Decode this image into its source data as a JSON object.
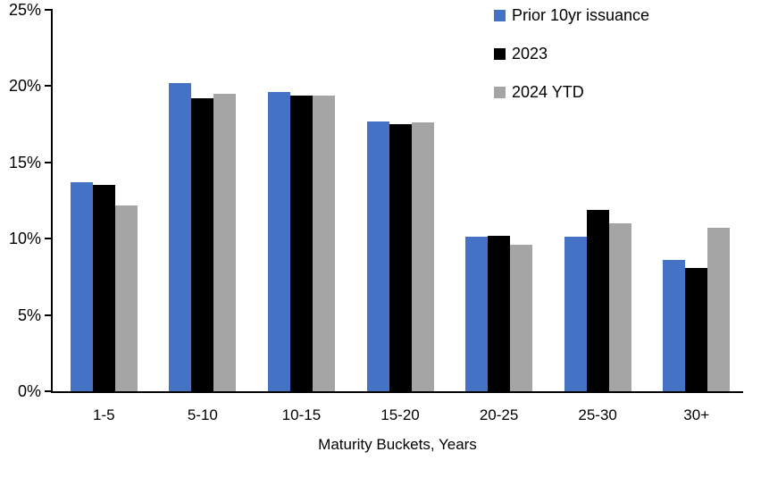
{
  "chart_data": {
    "type": "bar",
    "title": "",
    "xlabel": "Maturity Buckets, Years",
    "ylabel": "",
    "categories": [
      "1-5",
      "5-10",
      "10-15",
      "15-20",
      "20-25",
      "25-30",
      "30+"
    ],
    "series": [
      {
        "name": "Prior 10yr issuance",
        "color": "#4472C4",
        "values": [
          13.7,
          20.2,
          19.6,
          17.7,
          10.1,
          10.1,
          8.6
        ]
      },
      {
        "name": "2023",
        "color": "#000000",
        "values": [
          13.5,
          19.2,
          19.4,
          17.5,
          10.2,
          11.9,
          8.1
        ]
      },
      {
        "name": "2024 YTD",
        "color": "#A5A5A5",
        "values": [
          12.2,
          19.5,
          19.4,
          17.6,
          9.6,
          11.0,
          10.7
        ]
      }
    ],
    "ylim": [
      0,
      25
    ],
    "ytick_step": 5,
    "ytick_labels": [
      "0%",
      "5%",
      "10%",
      "15%",
      "20%",
      "25%"
    ],
    "grid": false,
    "legend_position": "top-right",
    "axis_color": "#000000"
  }
}
